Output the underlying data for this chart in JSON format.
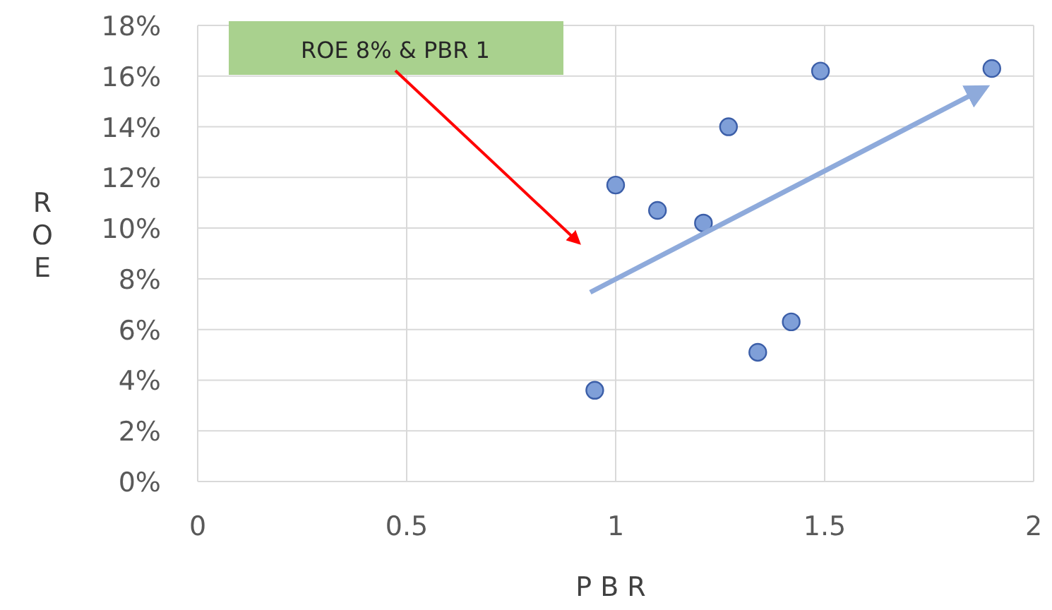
{
  "chart_data": {
    "type": "scatter",
    "xlabel": "P B R",
    "ylabel": "ROE",
    "x": [
      0.95,
      1.0,
      1.1,
      1.21,
      1.27,
      1.34,
      1.42,
      1.49,
      1.9
    ],
    "series": [
      {
        "color": "#7f9fd8",
        "values": [
          3.6,
          11.7,
          10.7,
          10.2,
          14.0,
          5.1,
          6.3,
          16.2,
          16.3
        ]
      }
    ],
    "xlim": [
      0,
      2
    ],
    "xticks": [
      0,
      0.5,
      1,
      1.5,
      2
    ],
    "ylim": [
      0,
      18
    ],
    "yticks": [
      {
        "value": 0,
        "label": "0%"
      },
      {
        "value": 2,
        "label": "2%"
      },
      {
        "value": 4,
        "label": "4%"
      },
      {
        "value": 6,
        "label": "6%"
      },
      {
        "value": 8,
        "label": "8%"
      },
      {
        "value": 10,
        "label": "10%"
      },
      {
        "value": 12,
        "label": "12%"
      },
      {
        "value": 14,
        "label": "14%"
      },
      {
        "value": 16,
        "label": "16%"
      },
      {
        "value": 18,
        "label": "18%"
      }
    ],
    "grid": true,
    "marker": "circle",
    "annotations": [
      "ROE 8% & PBR 1"
    ]
  }
}
